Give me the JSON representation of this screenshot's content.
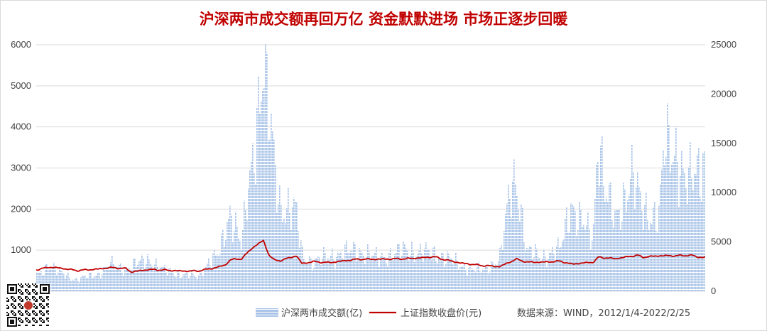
{
  "chart_data": {
    "type": "bar+line",
    "title": "沪深两市成交额再回万亿 资金默默进场 市场正逐步回暖",
    "source": "数据来源：WIND，2012/1/4-2022/2/25",
    "x_range": [
      "2012/1/4",
      "2022/2/25"
    ],
    "left_axis": {
      "ylim": [
        0,
        6000
      ],
      "ticks": [
        "0",
        "1000",
        "2000",
        "3000",
        "4000",
        "5000",
        "6000"
      ]
    },
    "right_axis": {
      "ylim": [
        0,
        25000
      ],
      "ticks": [
        "0",
        "5000",
        "10000",
        "15000",
        "20000",
        "25000"
      ]
    },
    "colors": {
      "bars": "#a9c4e8",
      "bar_stripe": "#ffffff",
      "line": "#c00000",
      "grid": "#d9d9d9",
      "title": "#c00000"
    },
    "grid": true,
    "legend_position": "bottom",
    "series": [
      {
        "name": "沪深两市成交额(亿)",
        "kind": "bar",
        "axis": "left",
        "x": [
          "2012-01",
          "2012-03",
          "2012-05",
          "2012-08",
          "2012-12",
          "2013-02",
          "2013-05",
          "2013-09",
          "2013-12",
          "2014-03",
          "2014-06",
          "2014-08",
          "2014-10",
          "2014-12",
          "2015-02",
          "2015-04",
          "2015-06",
          "2015-07",
          "2015-09",
          "2015-12",
          "2016-01",
          "2016-03",
          "2016-06",
          "2016-11",
          "2017-03",
          "2017-08",
          "2017-11",
          "2018-03",
          "2018-06",
          "2018-10",
          "2019-01",
          "2019-03",
          "2019-04",
          "2019-06",
          "2019-09",
          "2019-12",
          "2020-02",
          "2020-03",
          "2020-06",
          "2020-07",
          "2020-08",
          "2020-10",
          "2021-01",
          "2021-03",
          "2021-06",
          "2021-07",
          "2021-09",
          "2021-11",
          "2022-01",
          "2022-02"
        ],
        "values": [
          400,
          650,
          450,
          280,
          420,
          650,
          550,
          780,
          500,
          420,
          350,
          700,
          900,
          2000,
          1100,
          3200,
          5600,
          4200,
          2100,
          1900,
          900,
          700,
          850,
          1000,
          800,
          1000,
          950,
          850,
          620,
          500,
          800,
          2400,
          2800,
          950,
          850,
          1000,
          2200,
          1800,
          1300,
          4100,
          2500,
          1700,
          2800,
          2000,
          1800,
          3500,
          3500,
          2500,
          3000,
          3200
        ]
      },
      {
        "name": "上证指数收盘价(元)",
        "kind": "line",
        "axis": "right",
        "x": [
          "2012-01",
          "2012-03",
          "2012-05",
          "2012-08",
          "2012-12",
          "2013-02",
          "2013-05",
          "2013-06",
          "2013-09",
          "2013-12",
          "2014-03",
          "2014-06",
          "2014-09",
          "2014-11",
          "2014-12",
          "2015-02",
          "2015-04",
          "2015-06",
          "2015-07",
          "2015-08",
          "2015-09",
          "2015-12",
          "2016-01",
          "2016-03",
          "2016-06",
          "2016-11",
          "2017-03",
          "2017-08",
          "2017-11",
          "2018-01",
          "2018-03",
          "2018-06",
          "2018-10",
          "2019-01",
          "2019-04",
          "2019-06",
          "2019-09",
          "2019-12",
          "2020-02",
          "2020-03",
          "2020-06",
          "2020-07",
          "2020-10",
          "2021-02",
          "2021-03",
          "2021-06",
          "2021-09",
          "2021-12",
          "2022-01",
          "2022-02"
        ],
        "values": [
          2200,
          2450,
          2350,
          2100,
          2250,
          2400,
          2300,
          1950,
          2200,
          2150,
          2050,
          2050,
          2350,
          2650,
          3200,
          3300,
          4400,
          5150,
          3700,
          3150,
          3100,
          3600,
          2800,
          3000,
          2900,
          3250,
          3250,
          3300,
          3400,
          3500,
          3200,
          2850,
          2600,
          2500,
          3250,
          2950,
          2950,
          3050,
          2750,
          2800,
          2950,
          3450,
          3300,
          3650,
          3450,
          3600,
          3600,
          3650,
          3450,
          3450
        ]
      }
    ]
  }
}
